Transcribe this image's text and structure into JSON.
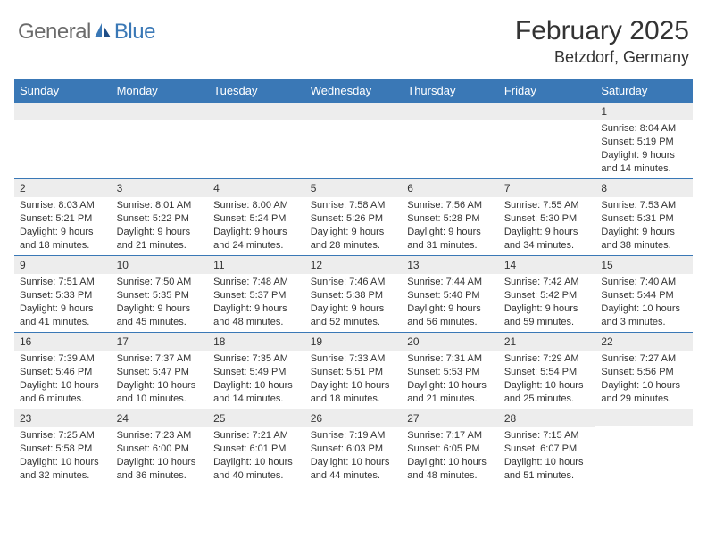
{
  "brand": {
    "part1": "General",
    "part2": "Blue"
  },
  "title": "February 2025",
  "location": "Betzdorf, Germany",
  "header_bg": "#3a78b6",
  "weekdays": [
    "Sunday",
    "Monday",
    "Tuesday",
    "Wednesday",
    "Thursday",
    "Friday",
    "Saturday"
  ],
  "weeks": [
    [
      {
        "day": "",
        "sunrise": "",
        "sunset": "",
        "daylight": ""
      },
      {
        "day": "",
        "sunrise": "",
        "sunset": "",
        "daylight": ""
      },
      {
        "day": "",
        "sunrise": "",
        "sunset": "",
        "daylight": ""
      },
      {
        "day": "",
        "sunrise": "",
        "sunset": "",
        "daylight": ""
      },
      {
        "day": "",
        "sunrise": "",
        "sunset": "",
        "daylight": ""
      },
      {
        "day": "",
        "sunrise": "",
        "sunset": "",
        "daylight": ""
      },
      {
        "day": "1",
        "sunrise": "Sunrise: 8:04 AM",
        "sunset": "Sunset: 5:19 PM",
        "daylight": "Daylight: 9 hours and 14 minutes."
      }
    ],
    [
      {
        "day": "2",
        "sunrise": "Sunrise: 8:03 AM",
        "sunset": "Sunset: 5:21 PM",
        "daylight": "Daylight: 9 hours and 18 minutes."
      },
      {
        "day": "3",
        "sunrise": "Sunrise: 8:01 AM",
        "sunset": "Sunset: 5:22 PM",
        "daylight": "Daylight: 9 hours and 21 minutes."
      },
      {
        "day": "4",
        "sunrise": "Sunrise: 8:00 AM",
        "sunset": "Sunset: 5:24 PM",
        "daylight": "Daylight: 9 hours and 24 minutes."
      },
      {
        "day": "5",
        "sunrise": "Sunrise: 7:58 AM",
        "sunset": "Sunset: 5:26 PM",
        "daylight": "Daylight: 9 hours and 28 minutes."
      },
      {
        "day": "6",
        "sunrise": "Sunrise: 7:56 AM",
        "sunset": "Sunset: 5:28 PM",
        "daylight": "Daylight: 9 hours and 31 minutes."
      },
      {
        "day": "7",
        "sunrise": "Sunrise: 7:55 AM",
        "sunset": "Sunset: 5:30 PM",
        "daylight": "Daylight: 9 hours and 34 minutes."
      },
      {
        "day": "8",
        "sunrise": "Sunrise: 7:53 AM",
        "sunset": "Sunset: 5:31 PM",
        "daylight": "Daylight: 9 hours and 38 minutes."
      }
    ],
    [
      {
        "day": "9",
        "sunrise": "Sunrise: 7:51 AM",
        "sunset": "Sunset: 5:33 PM",
        "daylight": "Daylight: 9 hours and 41 minutes."
      },
      {
        "day": "10",
        "sunrise": "Sunrise: 7:50 AM",
        "sunset": "Sunset: 5:35 PM",
        "daylight": "Daylight: 9 hours and 45 minutes."
      },
      {
        "day": "11",
        "sunrise": "Sunrise: 7:48 AM",
        "sunset": "Sunset: 5:37 PM",
        "daylight": "Daylight: 9 hours and 48 minutes."
      },
      {
        "day": "12",
        "sunrise": "Sunrise: 7:46 AM",
        "sunset": "Sunset: 5:38 PM",
        "daylight": "Daylight: 9 hours and 52 minutes."
      },
      {
        "day": "13",
        "sunrise": "Sunrise: 7:44 AM",
        "sunset": "Sunset: 5:40 PM",
        "daylight": "Daylight: 9 hours and 56 minutes."
      },
      {
        "day": "14",
        "sunrise": "Sunrise: 7:42 AM",
        "sunset": "Sunset: 5:42 PM",
        "daylight": "Daylight: 9 hours and 59 minutes."
      },
      {
        "day": "15",
        "sunrise": "Sunrise: 7:40 AM",
        "sunset": "Sunset: 5:44 PM",
        "daylight": "Daylight: 10 hours and 3 minutes."
      }
    ],
    [
      {
        "day": "16",
        "sunrise": "Sunrise: 7:39 AM",
        "sunset": "Sunset: 5:46 PM",
        "daylight": "Daylight: 10 hours and 6 minutes."
      },
      {
        "day": "17",
        "sunrise": "Sunrise: 7:37 AM",
        "sunset": "Sunset: 5:47 PM",
        "daylight": "Daylight: 10 hours and 10 minutes."
      },
      {
        "day": "18",
        "sunrise": "Sunrise: 7:35 AM",
        "sunset": "Sunset: 5:49 PM",
        "daylight": "Daylight: 10 hours and 14 minutes."
      },
      {
        "day": "19",
        "sunrise": "Sunrise: 7:33 AM",
        "sunset": "Sunset: 5:51 PM",
        "daylight": "Daylight: 10 hours and 18 minutes."
      },
      {
        "day": "20",
        "sunrise": "Sunrise: 7:31 AM",
        "sunset": "Sunset: 5:53 PM",
        "daylight": "Daylight: 10 hours and 21 minutes."
      },
      {
        "day": "21",
        "sunrise": "Sunrise: 7:29 AM",
        "sunset": "Sunset: 5:54 PM",
        "daylight": "Daylight: 10 hours and 25 minutes."
      },
      {
        "day": "22",
        "sunrise": "Sunrise: 7:27 AM",
        "sunset": "Sunset: 5:56 PM",
        "daylight": "Daylight: 10 hours and 29 minutes."
      }
    ],
    [
      {
        "day": "23",
        "sunrise": "Sunrise: 7:25 AM",
        "sunset": "Sunset: 5:58 PM",
        "daylight": "Daylight: 10 hours and 32 minutes."
      },
      {
        "day": "24",
        "sunrise": "Sunrise: 7:23 AM",
        "sunset": "Sunset: 6:00 PM",
        "daylight": "Daylight: 10 hours and 36 minutes."
      },
      {
        "day": "25",
        "sunrise": "Sunrise: 7:21 AM",
        "sunset": "Sunset: 6:01 PM",
        "daylight": "Daylight: 10 hours and 40 minutes."
      },
      {
        "day": "26",
        "sunrise": "Sunrise: 7:19 AM",
        "sunset": "Sunset: 6:03 PM",
        "daylight": "Daylight: 10 hours and 44 minutes."
      },
      {
        "day": "27",
        "sunrise": "Sunrise: 7:17 AM",
        "sunset": "Sunset: 6:05 PM",
        "daylight": "Daylight: 10 hours and 48 minutes."
      },
      {
        "day": "28",
        "sunrise": "Sunrise: 7:15 AM",
        "sunset": "Sunset: 6:07 PM",
        "daylight": "Daylight: 10 hours and 51 minutes."
      },
      {
        "day": "",
        "sunrise": "",
        "sunset": "",
        "daylight": ""
      }
    ]
  ]
}
